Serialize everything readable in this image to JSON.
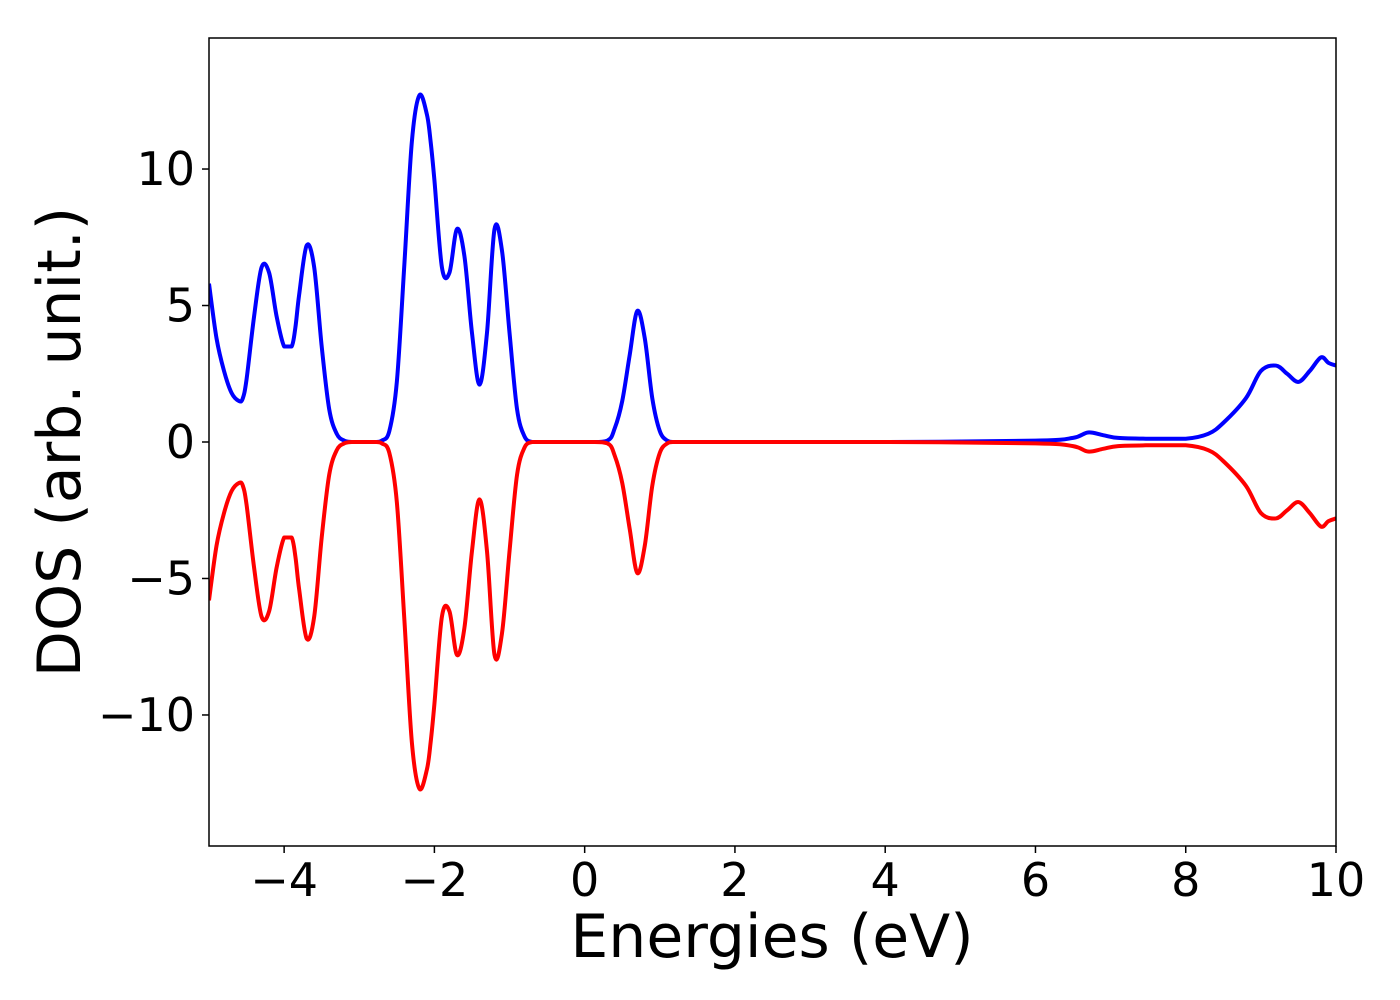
{
  "chart_data": {
    "type": "line",
    "title": "",
    "xlabel": "Energies (eV)",
    "ylabel": "DOS (arb. unit.)",
    "xlim": [
      -5,
      10
    ],
    "ylim": [
      -14.8,
      14.8
    ],
    "grid": false,
    "legend": "none",
    "x_ticks": [
      -4,
      -2,
      0,
      2,
      4,
      6,
      8,
      10
    ],
    "x_tick_labels": [
      "−4",
      "−2",
      "0",
      "2",
      "4",
      "6",
      "8",
      "10"
    ],
    "y_ticks": [
      -10,
      -5,
      0,
      5,
      10
    ],
    "y_tick_labels": [
      "−10",
      "−5",
      "0",
      "5",
      "10"
    ],
    "series": [
      {
        "color": "#0000ff",
        "x": [
          -5.0,
          -4.9,
          -4.8,
          -4.7,
          -4.6,
          -4.55,
          -4.5,
          -4.4,
          -4.3,
          -4.2,
          -4.1,
          -4.0,
          -3.9,
          -3.85,
          -3.8,
          -3.7,
          -3.6,
          -3.5,
          -3.4,
          -3.3,
          -3.2,
          -3.1,
          -3.0,
          -2.9,
          -2.8,
          -2.7,
          -2.6,
          -2.5,
          -2.4,
          -2.3,
          -2.2,
          -2.1,
          -2.05,
          -2.0,
          -1.9,
          -1.8,
          -1.7,
          -1.6,
          -1.5,
          -1.4,
          -1.3,
          -1.2,
          -1.1,
          -1.0,
          -0.9,
          -0.8,
          -0.7,
          -0.6,
          -0.5,
          -0.4,
          -0.3,
          0.0,
          0.3,
          0.4,
          0.5,
          0.6,
          0.7,
          0.8,
          0.9,
          1.0,
          1.1,
          1.2,
          1.3,
          1.4,
          1.5,
          2.0,
          4.0,
          6.0,
          6.5,
          6.7,
          6.9,
          7.1,
          7.5,
          8.0,
          8.3,
          8.5,
          8.8,
          9.0,
          9.2,
          9.35,
          9.5,
          9.65,
          9.8,
          9.9,
          10.0
        ],
        "y": [
          5.8,
          3.8,
          2.6,
          1.8,
          1.5,
          1.6,
          2.3,
          4.6,
          6.4,
          6.2,
          4.6,
          3.5,
          3.5,
          4.2,
          5.4,
          7.2,
          6.4,
          3.5,
          1.2,
          0.3,
          0.05,
          0.0,
          0.0,
          0.0,
          0.0,
          0.05,
          0.4,
          2.2,
          6.5,
          11.0,
          12.7,
          12.0,
          11.0,
          9.6,
          6.4,
          6.2,
          7.8,
          6.8,
          4.0,
          2.1,
          4.0,
          7.8,
          7.0,
          4.0,
          1.2,
          0.2,
          0.0,
          0.0,
          0.0,
          0.0,
          0.0,
          0.0,
          0.05,
          0.5,
          1.5,
          3.2,
          4.8,
          3.8,
          1.6,
          0.4,
          0.05,
          0.0,
          0.0,
          0.0,
          0.0,
          0.0,
          0.0,
          0.05,
          0.15,
          0.35,
          0.25,
          0.15,
          0.12,
          0.12,
          0.3,
          0.7,
          1.6,
          2.6,
          2.8,
          2.5,
          2.2,
          2.6,
          3.1,
          2.9,
          2.8
        ]
      },
      {
        "color": "#ff0000",
        "x": [
          -5.0,
          -4.9,
          -4.8,
          -4.7,
          -4.6,
          -4.55,
          -4.5,
          -4.4,
          -4.3,
          -4.2,
          -4.1,
          -4.0,
          -3.9,
          -3.85,
          -3.8,
          -3.7,
          -3.6,
          -3.5,
          -3.4,
          -3.3,
          -3.2,
          -3.1,
          -3.0,
          -2.9,
          -2.8,
          -2.7,
          -2.6,
          -2.5,
          -2.4,
          -2.3,
          -2.2,
          -2.1,
          -2.05,
          -2.0,
          -1.9,
          -1.8,
          -1.7,
          -1.6,
          -1.5,
          -1.4,
          -1.3,
          -1.2,
          -1.1,
          -1.0,
          -0.9,
          -0.8,
          -0.7,
          -0.6,
          -0.5,
          -0.4,
          -0.3,
          0.0,
          0.3,
          0.4,
          0.5,
          0.6,
          0.7,
          0.8,
          0.9,
          1.0,
          1.1,
          1.2,
          1.3,
          1.4,
          1.5,
          2.0,
          4.0,
          6.0,
          6.5,
          6.7,
          6.9,
          7.1,
          7.5,
          8.0,
          8.3,
          8.5,
          8.8,
          9.0,
          9.2,
          9.35,
          9.5,
          9.65,
          9.8,
          9.9,
          10.0
        ],
        "y": [
          -5.8,
          -3.8,
          -2.6,
          -1.8,
          -1.5,
          -1.6,
          -2.3,
          -4.6,
          -6.4,
          -6.2,
          -4.6,
          -3.5,
          -3.5,
          -4.2,
          -5.4,
          -7.2,
          -6.4,
          -3.5,
          -1.2,
          -0.3,
          -0.05,
          0.0,
          0.0,
          0.0,
          0.0,
          -0.05,
          -0.4,
          -2.2,
          -6.5,
          -11.0,
          -12.7,
          -12.0,
          -11.0,
          -9.6,
          -6.4,
          -6.2,
          -7.8,
          -6.8,
          -4.0,
          -2.1,
          -4.0,
          -7.8,
          -7.0,
          -4.0,
          -1.2,
          -0.2,
          0.0,
          0.0,
          0.0,
          0.0,
          0.0,
          0.0,
          -0.05,
          -0.5,
          -1.5,
          -3.2,
          -4.8,
          -3.8,
          -1.6,
          -0.4,
          -0.05,
          0.0,
          0.0,
          0.0,
          0.0,
          0.0,
          0.0,
          -0.05,
          -0.15,
          -0.35,
          -0.25,
          -0.15,
          -0.12,
          -0.12,
          -0.3,
          -0.7,
          -1.6,
          -2.6,
          -2.8,
          -2.5,
          -2.2,
          -2.6,
          -3.1,
          -2.9,
          -2.8
        ]
      }
    ]
  }
}
